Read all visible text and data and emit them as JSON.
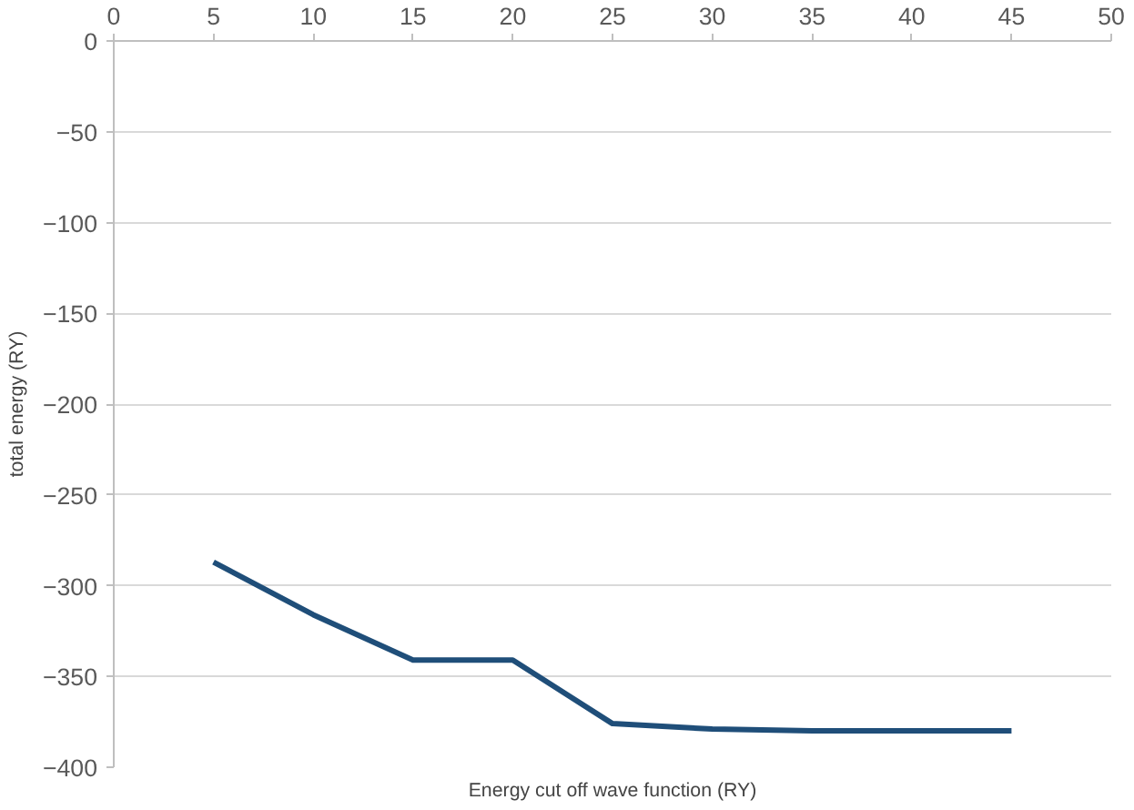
{
  "chart_data": {
    "type": "line",
    "xlabel": "Energy cut off wave function (RY)",
    "ylabel": "total energy (RY)",
    "x": [
      5,
      10,
      15,
      20,
      25,
      30,
      35,
      40,
      45
    ],
    "series": [
      {
        "color": "#1f4e79",
        "values": [
          -287,
          -316,
          -341,
          -341,
          -376,
          -379,
          -380,
          -380,
          -380
        ]
      }
    ],
    "xlim": [
      0,
      50
    ],
    "xticks": [
      0,
      5,
      10,
      15,
      20,
      25,
      30,
      35,
      40,
      45,
      50
    ],
    "ylim": [
      -400,
      0
    ],
    "yticks": [
      -400,
      -350,
      -300,
      -250,
      -200,
      -150,
      -100,
      -50,
      0
    ],
    "grid": "y",
    "marker": "none",
    "line_style": "solid"
  }
}
